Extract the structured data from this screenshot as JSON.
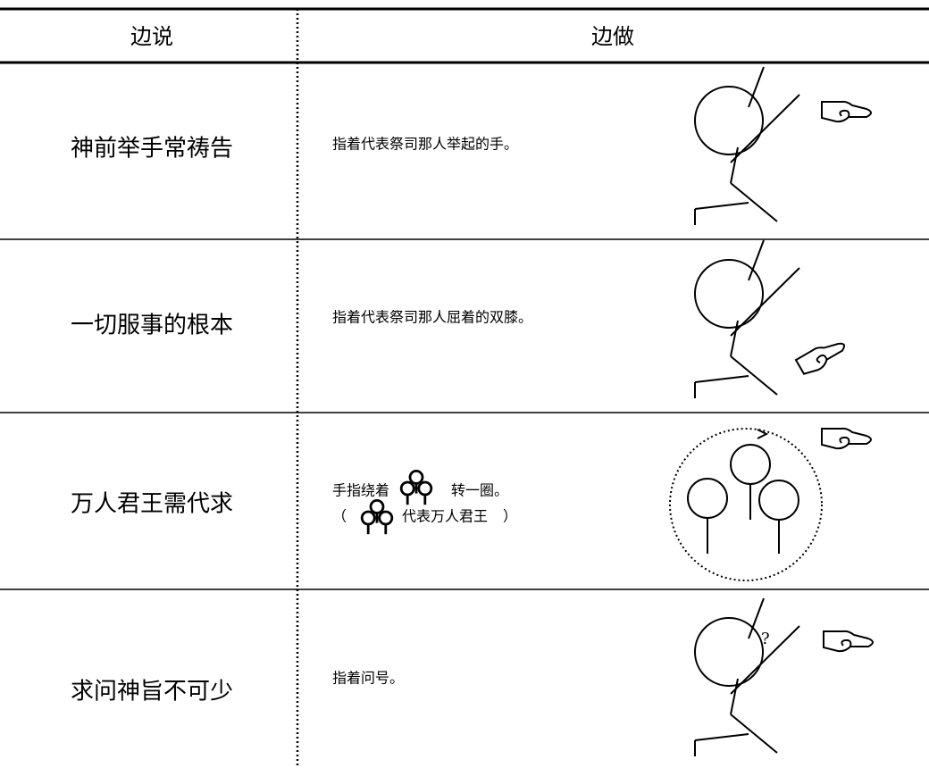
{
  "table": {
    "header": [
      "边说",
      "边做"
    ],
    "rows": [
      {
        "say": "神前举手常祷告",
        "do": [
          "指着代表祭司那人举起的手。"
        ]
      },
      {
        "say": "一切服事的根本",
        "do": [
          "指着代表祭司那人屈着的双膝。"
        ]
      },
      {
        "say": "万人君王需代求",
        "do": [
          "手指绕着",
          "转一圈。",
          "（",
          "代表万人君王",
          "）"
        ]
      },
      {
        "say": "求问神旨不可少",
        "do": [
          "指着问号。"
        ],
        "mark": "?"
      }
    ]
  }
}
